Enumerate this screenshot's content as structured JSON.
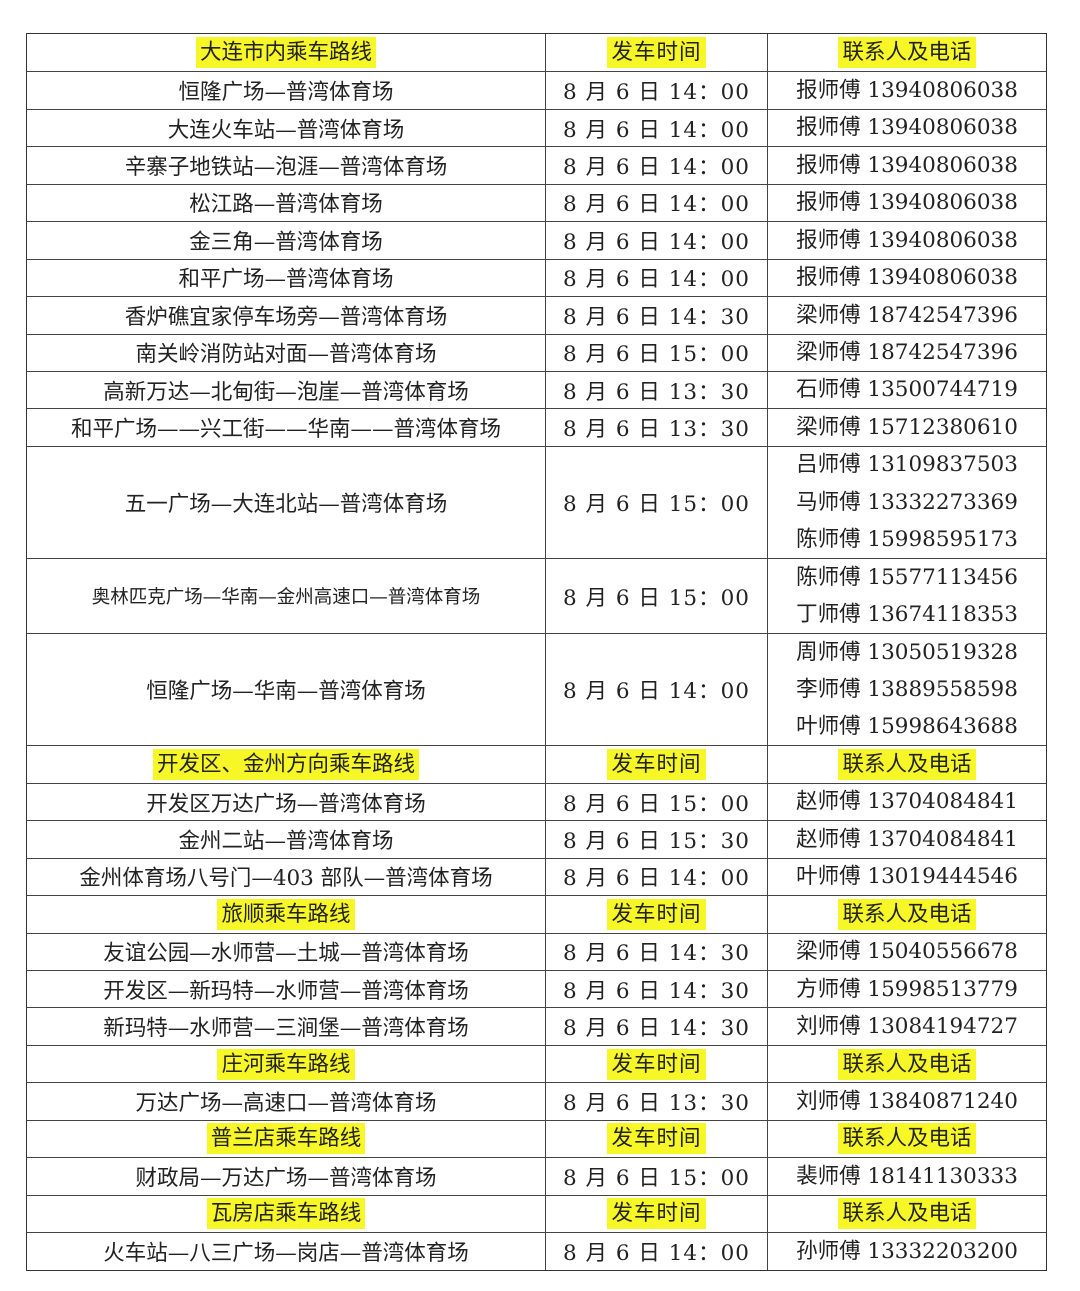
{
  "highlight_color": "#f7f728",
  "sections": [
    {
      "header": {
        "route": "大连市内乘车路线",
        "time": "发车时间",
        "contact": "联系人及电话"
      },
      "rows": [
        {
          "route": "恒隆广场—普湾体育场",
          "time": "8 月 6 日 14：00",
          "contacts": [
            "报师傅 13940806038"
          ]
        },
        {
          "route": "大连火车站—普湾体育场",
          "time": "8 月 6 日 14：00",
          "contacts": [
            "报师傅 13940806038"
          ]
        },
        {
          "route": "辛寨子地铁站—泡涯—普湾体育场",
          "time": "8 月 6 日 14：00",
          "contacts": [
            "报师傅 13940806038"
          ]
        },
        {
          "route": "松江路—普湾体育场",
          "time": "8 月 6 日 14：00",
          "contacts": [
            "报师傅 13940806038"
          ]
        },
        {
          "route": "金三角—普湾体育场",
          "time": "8 月 6 日 14：00",
          "contacts": [
            "报师傅 13940806038"
          ]
        },
        {
          "route": "和平广场—普湾体育场",
          "time": "8 月 6 日 14：00",
          "contacts": [
            "报师傅 13940806038"
          ]
        },
        {
          "route": "香炉礁宜家停车场旁—普湾体育场",
          "time": "8 月 6 日 14：30",
          "contacts": [
            "梁师傅 18742547396"
          ]
        },
        {
          "route": "南关岭消防站对面—普湾体育场",
          "time": "8 月 6 日 15：00",
          "contacts": [
            "梁师傅 18742547396"
          ]
        },
        {
          "route": "高新万达—北甸街—泡崖—普湾体育场",
          "time": "8 月 6 日 13：30",
          "contacts": [
            "石师傅  13500744719"
          ]
        },
        {
          "route": "和平广场——兴工街——华南——普湾体育场",
          "time": "8 月 6 日 13：30",
          "contacts": [
            "梁师傅  15712380610"
          ]
        },
        {
          "route": "五一广场—大连北站—普湾体育场",
          "time": "8 月 6 日 15：00",
          "contacts": [
            "吕师傅 13109837503",
            "马师傅 13332273369",
            "陈师傅 15998595173"
          ]
        },
        {
          "route": "奥林匹克广场—华南—金州高速口—普湾体育场",
          "time": "8 月 6 日 15：00",
          "contacts": [
            "陈师傅 15577113456",
            "丁师傅 13674118353"
          ],
          "small": true
        },
        {
          "route": "恒隆广场—华南—普湾体育场",
          "time": "8 月 6 日 14：00",
          "contacts": [
            "周师傅 13050519328",
            "李师傅 13889558598",
            "叶师傅 15998643688"
          ]
        }
      ]
    },
    {
      "header": {
        "route": "开发区、金州方向乘车路线",
        "time": "发车时间",
        "contact": "联系人及电话"
      },
      "rows": [
        {
          "route": "开发区万达广场—普湾体育场",
          "time": "8 月 6 日 15：00",
          "contacts": [
            "赵师傅 13704084841"
          ]
        },
        {
          "route": "金州二站—普湾体育场",
          "time": "8 月 6 日 15：30",
          "contacts": [
            "赵师傅 13704084841"
          ]
        },
        {
          "route": "金州体育场八号门—403 部队—普湾体育场",
          "time": "8 月 6 日 14：00",
          "contacts": [
            "叶师傅 13019444546"
          ]
        }
      ]
    },
    {
      "header": {
        "route": "旅顺乘车路线",
        "time": "发车时间",
        "contact": "联系人及电话"
      },
      "rows": [
        {
          "route": "友谊公园—水师营—土城—普湾体育场",
          "time": "8 月 6 日 14：30",
          "contacts": [
            "梁师傅 15040556678"
          ]
        },
        {
          "route": "开发区—新玛特—水师营—普湾体育场",
          "time": "8 月 6 日 14：30",
          "contacts": [
            "方师傅 15998513779"
          ]
        },
        {
          "route": "新玛特—水师营—三涧堡—普湾体育场",
          "time": "8 月 6 日 14：30",
          "contacts": [
            "刘师傅 13084194727"
          ]
        }
      ]
    },
    {
      "header": {
        "route": "庄河乘车路线",
        "time": "发车时间",
        "contact": "联系人及电话"
      },
      "rows": [
        {
          "route": "万达广场—高速口—普湾体育场",
          "time": "8 月 6 日 13：30",
          "contacts": [
            "刘师傅 13840871240"
          ]
        }
      ]
    },
    {
      "header": {
        "route": "普兰店乘车路线",
        "time": "发车时间",
        "contact": "联系人及电话"
      },
      "rows": [
        {
          "route": "财政局—万达广场—普湾体育场",
          "time": "8 月 6 日 15：00",
          "contacts": [
            "裴师傅 18141130333"
          ]
        }
      ]
    },
    {
      "header": {
        "route": "瓦房店乘车路线",
        "time": "发车时间",
        "contact": "联系人及电话"
      },
      "rows": [
        {
          "route": "火车站—八三广场—岗店—普湾体育场",
          "time": "8 月 6 日 14：00",
          "contacts": [
            "孙师傅  13332203200"
          ]
        }
      ]
    }
  ]
}
